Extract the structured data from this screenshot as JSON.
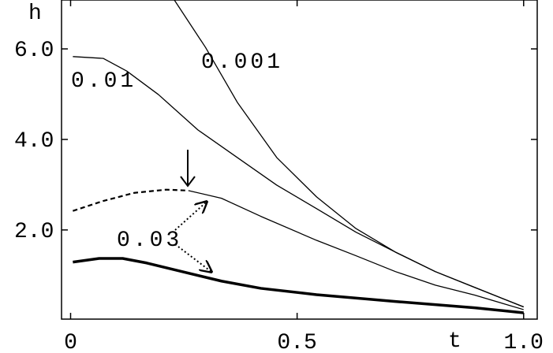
{
  "chart_data": {
    "type": "line",
    "x_label": "t",
    "y_label": "h",
    "xlim": [
      -0.02,
      1.03
    ],
    "ylim": [
      0.03,
      7.08
    ],
    "xticks": [
      0,
      0.5,
      {
        "value": 1.0,
        "label": "1.0"
      }
    ],
    "yticks": [
      {
        "value": 2.0,
        "label": "2.0"
      },
      {
        "value": 4.0,
        "label": "4.0"
      },
      {
        "value": 6.0,
        "label": "6.0"
      }
    ],
    "series": [
      {
        "name": "0.001",
        "color": "#000000",
        "x": [
          0.229,
          0.298,
          0.368,
          0.455,
          0.543,
          0.63,
          0.717,
          0.805,
          0.892,
          1.0
        ],
        "values": [
          7.08,
          6.03,
          4.82,
          3.6,
          2.73,
          2.03,
          1.51,
          1.08,
          0.73,
          0.3
        ]
      },
      {
        "name": "0.01",
        "color": "#000000",
        "x": [
          0.005,
          0.072,
          0.124,
          0.194,
          0.281,
          0.368,
          0.455,
          0.543,
          0.63,
          0.717,
          0.805,
          0.892,
          1.0
        ],
        "values": [
          5.83,
          5.79,
          5.51,
          4.99,
          4.21,
          3.6,
          2.99,
          2.47,
          1.95,
          1.51,
          1.08,
          0.73,
          0.3
        ]
      },
      {
        "name": "0.03",
        "color": "#000000",
        "x": [
          0.26,
          0.333,
          0.42,
          0.543,
          0.63,
          0.717,
          0.805,
          0.892,
          1.0
        ],
        "values": [
          2.87,
          2.7,
          2.3,
          1.77,
          1.43,
          1.08,
          0.78,
          0.56,
          0.24
        ]
      },
      {
        "color": "#000000",
        "dashed": true,
        "x": [
          0.005,
          0.072,
          0.141,
          0.211,
          0.26
        ],
        "values": [
          2.42,
          2.64,
          2.82,
          2.89,
          2.87
        ]
      },
      {
        "color": "#000000",
        "thick": true,
        "x": [
          0.005,
          0.063,
          0.115,
          0.168,
          0.246,
          0.333,
          0.42,
          0.543,
          0.717,
          0.892,
          1.0
        ],
        "values": [
          1.29,
          1.37,
          1.37,
          1.27,
          1.08,
          0.87,
          0.71,
          0.57,
          0.42,
          0.28,
          0.17
        ]
      }
    ]
  }
}
